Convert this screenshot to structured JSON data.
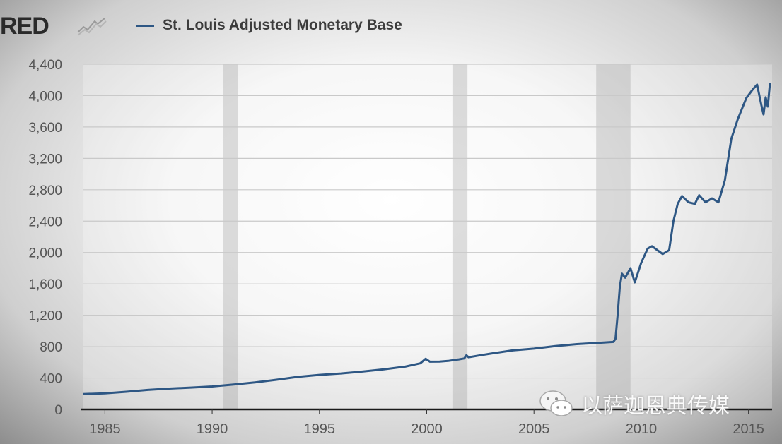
{
  "header": {
    "logo_text": "RED",
    "legend_label": "St. Louis Adjusted Monetary Base",
    "series_color": "#2e5784"
  },
  "watermark": {
    "text": "以萨迦恩典传媒",
    "icon": "wechat-icon"
  },
  "chart_data": {
    "type": "line",
    "title": "",
    "xlabel": "",
    "ylabel": "",
    "xlim": [
      1984.0,
      2016.1
    ],
    "ylim": [
      0,
      4400
    ],
    "x_ticks": [
      1985,
      1990,
      1995,
      2000,
      2005,
      2010,
      2015
    ],
    "x_tick_labels": [
      "1985",
      "1990",
      "1995",
      "2000",
      "2005",
      "2010",
      "2015"
    ],
    "y_ticks": [
      0,
      400,
      800,
      1200,
      1600,
      2000,
      2400,
      2800,
      3200,
      3600,
      4000,
      4400
    ],
    "y_tick_labels": [
      "0",
      "400",
      "800",
      "1,200",
      "1,600",
      "2,000",
      "2,400",
      "2,800",
      "3,200",
      "3,600",
      "4,000",
      "4,400"
    ],
    "grid": true,
    "legend_position": "top-left",
    "recessions": [
      [
        1990.5,
        1991.2
      ],
      [
        2001.2,
        2001.9
      ],
      [
        2007.9,
        2009.5
      ]
    ],
    "series": [
      {
        "name": "St. Louis Adjusted Monetary Base",
        "color": "#2e5784",
        "points": [
          [
            1984.0,
            195
          ],
          [
            1985.0,
            205
          ],
          [
            1986.0,
            225
          ],
          [
            1987.0,
            248
          ],
          [
            1988.0,
            265
          ],
          [
            1989.0,
            278
          ],
          [
            1990.0,
            292
          ],
          [
            1991.0,
            318
          ],
          [
            1992.0,
            345
          ],
          [
            1993.0,
            378
          ],
          [
            1994.0,
            415
          ],
          [
            1995.0,
            440
          ],
          [
            1996.0,
            458
          ],
          [
            1997.0,
            482
          ],
          [
            1998.0,
            510
          ],
          [
            1999.0,
            545
          ],
          [
            1999.7,
            588
          ],
          [
            1999.95,
            645
          ],
          [
            2000.15,
            608
          ],
          [
            2000.6,
            610
          ],
          [
            2001.0,
            618
          ],
          [
            2001.5,
            638
          ],
          [
            2001.75,
            650
          ],
          [
            2001.85,
            690
          ],
          [
            2001.95,
            665
          ],
          [
            2002.5,
            690
          ],
          [
            2003.0,
            712
          ],
          [
            2004.0,
            752
          ],
          [
            2005.0,
            775
          ],
          [
            2006.0,
            808
          ],
          [
            2007.0,
            832
          ],
          [
            2008.0,
            848
          ],
          [
            2008.7,
            860
          ],
          [
            2008.8,
            900
          ],
          [
            2008.9,
            1200
          ],
          [
            2009.0,
            1560
          ],
          [
            2009.1,
            1730
          ],
          [
            2009.25,
            1680
          ],
          [
            2009.5,
            1800
          ],
          [
            2009.7,
            1620
          ],
          [
            2010.0,
            1870
          ],
          [
            2010.3,
            2050
          ],
          [
            2010.5,
            2080
          ],
          [
            2010.8,
            2020
          ],
          [
            2011.0,
            1980
          ],
          [
            2011.3,
            2030
          ],
          [
            2011.5,
            2400
          ],
          [
            2011.7,
            2620
          ],
          [
            2011.9,
            2720
          ],
          [
            2012.2,
            2640
          ],
          [
            2012.5,
            2620
          ],
          [
            2012.7,
            2730
          ],
          [
            2013.0,
            2640
          ],
          [
            2013.3,
            2690
          ],
          [
            2013.6,
            2640
          ],
          [
            2013.9,
            2920
          ],
          [
            2014.2,
            3450
          ],
          [
            2014.5,
            3700
          ],
          [
            2014.9,
            3970
          ],
          [
            2015.2,
            4080
          ],
          [
            2015.4,
            4140
          ],
          [
            2015.6,
            3880
          ],
          [
            2015.7,
            3760
          ],
          [
            2015.8,
            3980
          ],
          [
            2015.9,
            3860
          ],
          [
            2016.0,
            4160
          ]
        ]
      }
    ]
  }
}
